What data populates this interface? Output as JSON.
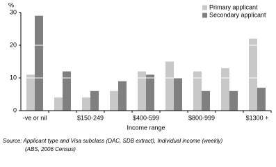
{
  "chart_data": {
    "type": "bar",
    "y_label": "%",
    "x_label": "Income range",
    "source": [
      "Source: Applicant type and Visa subclass (DAC, SDB extract), Individual income (weekly)",
      "(ABS, 2006 Census)"
    ],
    "categories": [
      "-ve or nil",
      null,
      "$150-249",
      null,
      "$400-599",
      null,
      "$800-999",
      null,
      "$1300 +"
    ],
    "series": [
      {
        "name": "Primary applicant",
        "color": "#c8c8c8",
        "values": [
          11,
          4,
          4,
          6,
          12,
          15,
          12,
          13,
          22
        ]
      },
      {
        "name": "Secondary applicant",
        "color": "#808080",
        "values": [
          29,
          12,
          6,
          9,
          11,
          10,
          6,
          6,
          7
        ]
      }
    ],
    "ylim": [
      0,
      30
    ],
    "yticks": [
      0,
      10,
      20,
      30
    ],
    "grid": true,
    "legend": "top-right"
  }
}
